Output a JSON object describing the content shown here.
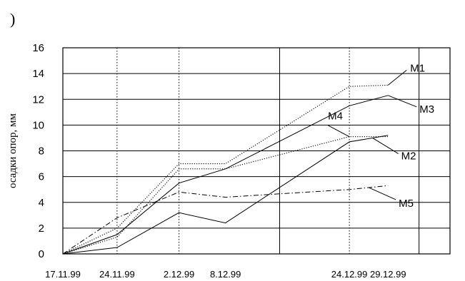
{
  "header": {
    "paren": ")"
  },
  "chart_data": {
    "type": "line",
    "title": "",
    "xlabel": "",
    "ylabel": "осадки опор, мм",
    "ylim": [
      0,
      16
    ],
    "yticks": [
      0,
      2,
      4,
      6,
      8,
      10,
      12,
      14,
      16
    ],
    "x_dates": [
      "17.11.99",
      "24.11.99",
      "2.12.99",
      "8.12.99",
      "24.12.99",
      "29.12.99"
    ],
    "x_day_offsets": [
      0,
      7,
      15,
      21,
      37,
      42
    ],
    "grid": true,
    "legend": "inline-labels",
    "series": [
      {
        "name": "M1",
        "values": [
          0,
          2.0,
          7.0,
          7.0,
          13.0,
          13.1
        ],
        "style": "dotted"
      },
      {
        "name": "M2",
        "values": [
          0,
          0.5,
          3.2,
          2.4,
          8.7,
          9.2
        ],
        "style": "solid"
      },
      {
        "name": "M3",
        "values": [
          0,
          1.5,
          5.5,
          6.6,
          11.5,
          12.3
        ],
        "style": "solid"
      },
      {
        "name": "M4",
        "values": [
          0,
          1.3,
          6.6,
          6.6,
          9.1,
          9.1
        ],
        "style": "dotted"
      },
      {
        "name": "M5",
        "values": [
          0,
          2.8,
          4.8,
          4.4,
          5.0,
          5.3
        ],
        "style": "dashdot"
      }
    ],
    "annotations": [
      {
        "series": "M1",
        "text": "M1"
      },
      {
        "series": "M3",
        "text": "M3"
      },
      {
        "series": "M4",
        "text": "M4"
      },
      {
        "series": "M2",
        "text": "M2"
      },
      {
        "series": "M5",
        "text": "M5"
      }
    ]
  }
}
